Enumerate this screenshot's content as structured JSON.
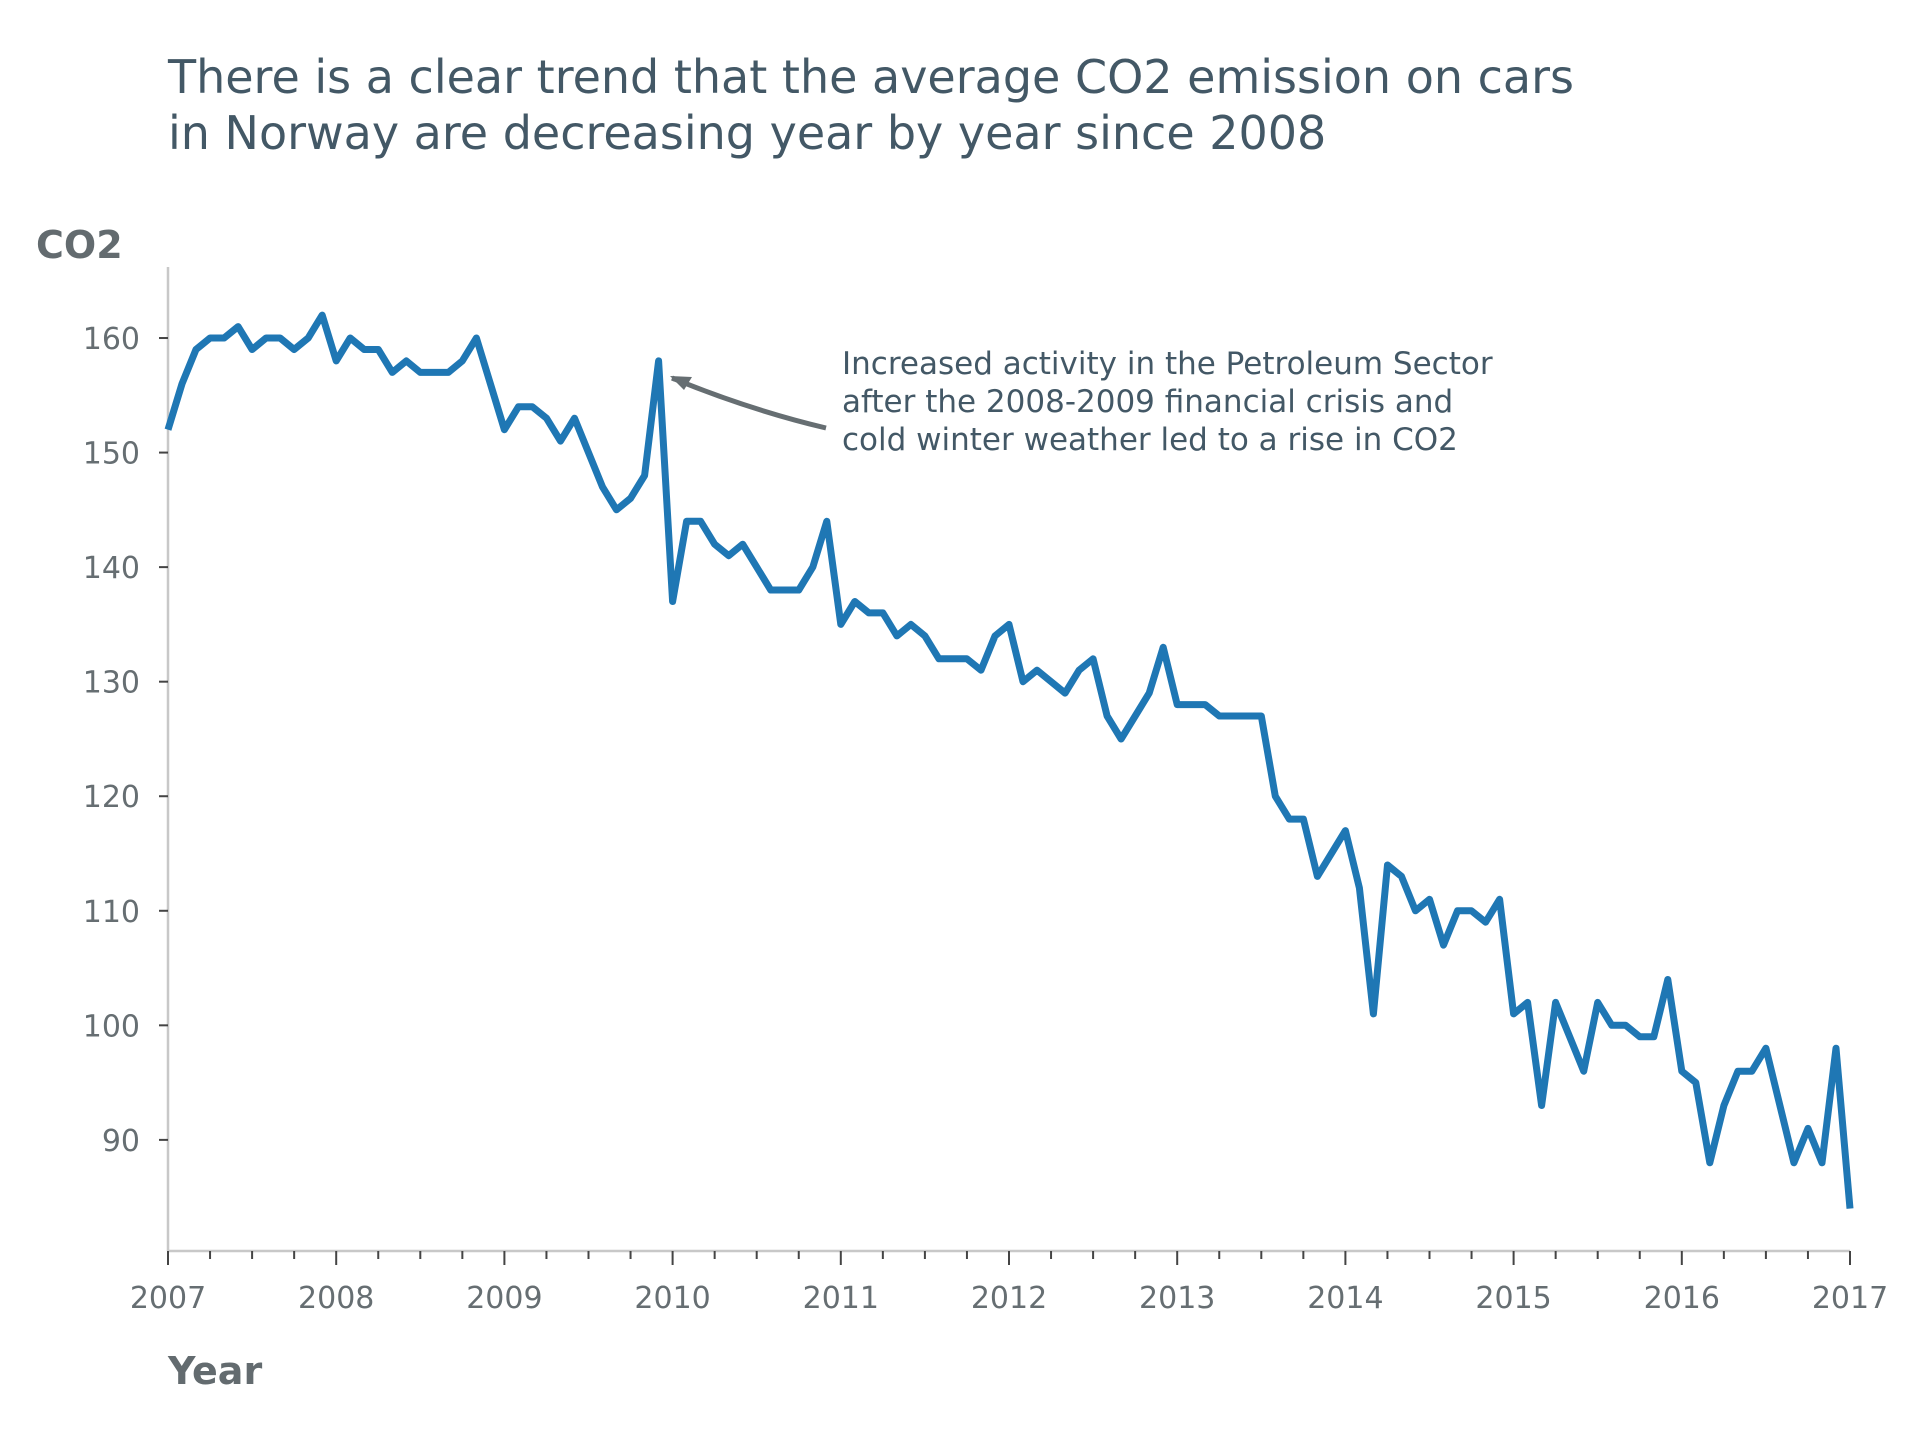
{
  "chart_data": {
    "type": "line",
    "title_lines": [
      "There is a clear trend that the average CO2 emission on cars",
      "in Norway are decreasing year by year since 2008"
    ],
    "xlabel": "Year",
    "ylabel": "CO2",
    "xlim": [
      2007,
      2017
    ],
    "ylim": [
      80.3,
      166.2
    ],
    "x_ticks": [
      2007,
      2008,
      2009,
      2010,
      2011,
      2012,
      2013,
      2014,
      2015,
      2016,
      2017
    ],
    "x_tick_labels": [
      "2007",
      "2008",
      "2009",
      "2010",
      "2011",
      "2012",
      "2013",
      "2014",
      "2015",
      "2016",
      "2017"
    ],
    "y_ticks": [
      90,
      100,
      110,
      120,
      130,
      140,
      150,
      160
    ],
    "y_tick_labels": [
      "90",
      "100",
      "110",
      "120",
      "130",
      "140",
      "150",
      "160"
    ],
    "x_minor_per_year": 4,
    "grid": false,
    "annotation": {
      "lines": [
        "Increased activity in the Petroleum Sector",
        "after the 2008-2009 financial crisis and",
        "cold winter weather led to a rise in CO2"
      ],
      "points_to": [
        2010.0,
        156.5
      ]
    },
    "series": [
      {
        "values": [
          152,
          156,
          159,
          160,
          160,
          161,
          159,
          160,
          160,
          159,
          160,
          162,
          158,
          160,
          159,
          159,
          157,
          158,
          157,
          157,
          157,
          158,
          160,
          156,
          152,
          154,
          154,
          153,
          151,
          153,
          150,
          147,
          145,
          146,
          148,
          158,
          137,
          144,
          144,
          142,
          141,
          142,
          140,
          138,
          138,
          138,
          140,
          144,
          135,
          137,
          136,
          136,
          134,
          135,
          134,
          132,
          132,
          132,
          131,
          134,
          135,
          130,
          131,
          130,
          129,
          131,
          132,
          127,
          125,
          127,
          129,
          133,
          128,
          128,
          128,
          127,
          127,
          127,
          127,
          120,
          118,
          118,
          113,
          115,
          117,
          112,
          101,
          114,
          113,
          110,
          111,
          107,
          110,
          110,
          109,
          111,
          101,
          102,
          93,
          102,
          99,
          96,
          102,
          100,
          100,
          99,
          99,
          104,
          96,
          95,
          88,
          93,
          96,
          96,
          98,
          93,
          88,
          91,
          88,
          98,
          84
        ]
      }
    ],
    "colors": {
      "line": "#1f77b4",
      "title": "#435866",
      "axis_text": "#666e72",
      "arrow": "#666e72"
    }
  }
}
